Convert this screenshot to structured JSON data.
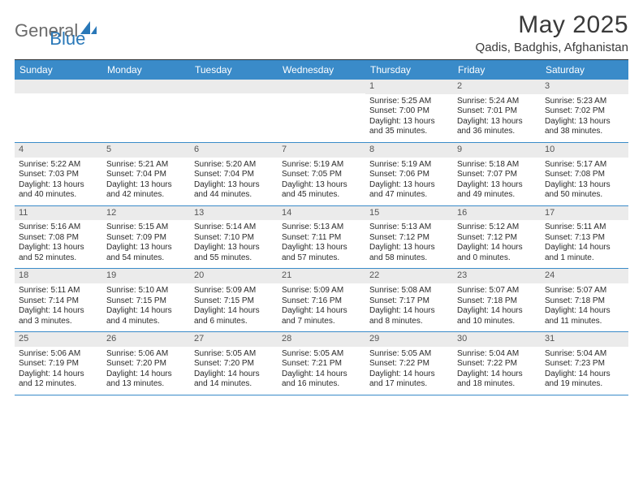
{
  "logo": {
    "text1": "General",
    "text2": "Blue"
  },
  "title": "May 2025",
  "location": "Qadis, Badghis, Afghanistan",
  "colors": {
    "headerBlue": "#3a8bc9",
    "logoBlue": "#2978b8",
    "rowGray": "#ebebeb",
    "borderBlue": "#3a8bc9",
    "textDark": "#2a2a2a"
  },
  "weekdays": [
    "Sunday",
    "Monday",
    "Tuesday",
    "Wednesday",
    "Thursday",
    "Friday",
    "Saturday"
  ],
  "weeks": [
    [
      null,
      null,
      null,
      null,
      {
        "n": 1,
        "sunrise": "5:25 AM",
        "sunset": "7:00 PM",
        "dayH": 13,
        "dayM": 35
      },
      {
        "n": 2,
        "sunrise": "5:24 AM",
        "sunset": "7:01 PM",
        "dayH": 13,
        "dayM": 36
      },
      {
        "n": 3,
        "sunrise": "5:23 AM",
        "sunset": "7:02 PM",
        "dayH": 13,
        "dayM": 38
      }
    ],
    [
      {
        "n": 4,
        "sunrise": "5:22 AM",
        "sunset": "7:03 PM",
        "dayH": 13,
        "dayM": 40
      },
      {
        "n": 5,
        "sunrise": "5:21 AM",
        "sunset": "7:04 PM",
        "dayH": 13,
        "dayM": 42
      },
      {
        "n": 6,
        "sunrise": "5:20 AM",
        "sunset": "7:04 PM",
        "dayH": 13,
        "dayM": 44
      },
      {
        "n": 7,
        "sunrise": "5:19 AM",
        "sunset": "7:05 PM",
        "dayH": 13,
        "dayM": 45
      },
      {
        "n": 8,
        "sunrise": "5:19 AM",
        "sunset": "7:06 PM",
        "dayH": 13,
        "dayM": 47
      },
      {
        "n": 9,
        "sunrise": "5:18 AM",
        "sunset": "7:07 PM",
        "dayH": 13,
        "dayM": 49
      },
      {
        "n": 10,
        "sunrise": "5:17 AM",
        "sunset": "7:08 PM",
        "dayH": 13,
        "dayM": 50
      }
    ],
    [
      {
        "n": 11,
        "sunrise": "5:16 AM",
        "sunset": "7:08 PM",
        "dayH": 13,
        "dayM": 52
      },
      {
        "n": 12,
        "sunrise": "5:15 AM",
        "sunset": "7:09 PM",
        "dayH": 13,
        "dayM": 54
      },
      {
        "n": 13,
        "sunrise": "5:14 AM",
        "sunset": "7:10 PM",
        "dayH": 13,
        "dayM": 55
      },
      {
        "n": 14,
        "sunrise": "5:13 AM",
        "sunset": "7:11 PM",
        "dayH": 13,
        "dayM": 57
      },
      {
        "n": 15,
        "sunrise": "5:13 AM",
        "sunset": "7:12 PM",
        "dayH": 13,
        "dayM": 58
      },
      {
        "n": 16,
        "sunrise": "5:12 AM",
        "sunset": "7:12 PM",
        "dayH": 14,
        "dayM": 0
      },
      {
        "n": 17,
        "sunrise": "5:11 AM",
        "sunset": "7:13 PM",
        "dayH": 14,
        "dayM": 1
      }
    ],
    [
      {
        "n": 18,
        "sunrise": "5:11 AM",
        "sunset": "7:14 PM",
        "dayH": 14,
        "dayM": 3
      },
      {
        "n": 19,
        "sunrise": "5:10 AM",
        "sunset": "7:15 PM",
        "dayH": 14,
        "dayM": 4
      },
      {
        "n": 20,
        "sunrise": "5:09 AM",
        "sunset": "7:15 PM",
        "dayH": 14,
        "dayM": 6
      },
      {
        "n": 21,
        "sunrise": "5:09 AM",
        "sunset": "7:16 PM",
        "dayH": 14,
        "dayM": 7
      },
      {
        "n": 22,
        "sunrise": "5:08 AM",
        "sunset": "7:17 PM",
        "dayH": 14,
        "dayM": 8
      },
      {
        "n": 23,
        "sunrise": "5:07 AM",
        "sunset": "7:18 PM",
        "dayH": 14,
        "dayM": 10
      },
      {
        "n": 24,
        "sunrise": "5:07 AM",
        "sunset": "7:18 PM",
        "dayH": 14,
        "dayM": 11
      }
    ],
    [
      {
        "n": 25,
        "sunrise": "5:06 AM",
        "sunset": "7:19 PM",
        "dayH": 14,
        "dayM": 12
      },
      {
        "n": 26,
        "sunrise": "5:06 AM",
        "sunset": "7:20 PM",
        "dayH": 14,
        "dayM": 13
      },
      {
        "n": 27,
        "sunrise": "5:05 AM",
        "sunset": "7:20 PM",
        "dayH": 14,
        "dayM": 14
      },
      {
        "n": 28,
        "sunrise": "5:05 AM",
        "sunset": "7:21 PM",
        "dayH": 14,
        "dayM": 16
      },
      {
        "n": 29,
        "sunrise": "5:05 AM",
        "sunset": "7:22 PM",
        "dayH": 14,
        "dayM": 17
      },
      {
        "n": 30,
        "sunrise": "5:04 AM",
        "sunset": "7:22 PM",
        "dayH": 14,
        "dayM": 18
      },
      {
        "n": 31,
        "sunrise": "5:04 AM",
        "sunset": "7:23 PM",
        "dayH": 14,
        "dayM": 19
      }
    ]
  ]
}
